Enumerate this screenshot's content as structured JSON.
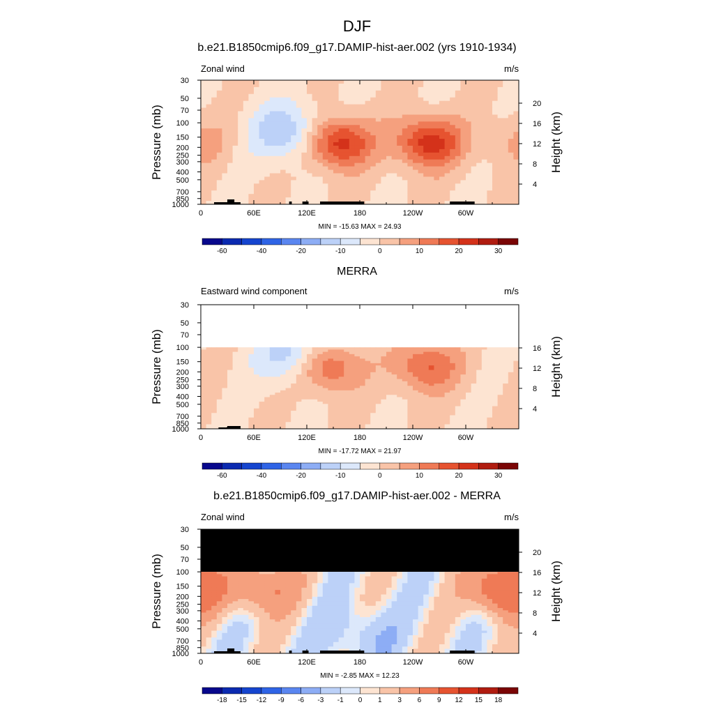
{
  "figure": {
    "title": "DJF"
  },
  "chart_data": [
    {
      "type": "heatmap",
      "title": "b.e21.B1850cmip6.f09_g17.DAMIP-hist-aer.002 (yrs 1910-1934)",
      "left_label": "Zonal wind",
      "units": "m/s",
      "ylabel": "Pressure (mb)",
      "ylabel_right": "Height (km)",
      "x_ticks": [
        "0",
        "60E",
        "120E",
        "180",
        "120W",
        "60W"
      ],
      "y_ticks": [
        "30",
        "50",
        "70",
        "100",
        "150",
        "200",
        "250",
        "300",
        "400",
        "500",
        "700",
        "850",
        "1000"
      ],
      "height_ticks": [
        "4",
        "8",
        "12",
        "16",
        "20"
      ],
      "stats": "MIN = -15.63  MAX =  24.93",
      "min": -15.63,
      "max": 24.93,
      "colorbar_labels": [
        "-60",
        "-40",
        "-20",
        "-10",
        "0",
        "10",
        "20",
        "30"
      ],
      "levels": [
        -60,
        -50,
        -40,
        -30,
        -20,
        -15,
        -10,
        -5,
        0,
        5,
        10,
        15,
        20,
        25,
        30
      ],
      "jets": [
        {
          "lon": 155,
          "p": 175,
          "peak": 24.93
        },
        {
          "lon": 258,
          "p": 175,
          "peak": 23.5
        },
        {
          "lon": 0,
          "p": 170,
          "peak": 6
        }
      ],
      "lows": [
        {
          "lon": 100,
          "p": 130,
          "peak": -15.63
        }
      ],
      "data_top_mb": 30
    },
    {
      "type": "heatmap",
      "title": "MERRA",
      "left_label": "Eastward wind component",
      "units": "m/s",
      "ylabel": "Pressure (mb)",
      "ylabel_right": "Height (km)",
      "x_ticks": [
        "0",
        "60E",
        "120E",
        "180",
        "120W",
        "60W"
      ],
      "y_ticks": [
        "30",
        "50",
        "70",
        "100",
        "150",
        "200",
        "250",
        "300",
        "400",
        "500",
        "700",
        "850",
        "1000"
      ],
      "height_ticks": [
        "4",
        "8",
        "12",
        "16"
      ],
      "stats": "MIN = -17.72  MAX =  21.97",
      "min": -17.72,
      "max": 21.97,
      "colorbar_labels": [
        "-60",
        "-40",
        "-20",
        "-10",
        "0",
        "10",
        "20",
        "30"
      ],
      "levels": [
        -60,
        -50,
        -40,
        -30,
        -20,
        -15,
        -10,
        -5,
        0,
        5,
        10,
        15,
        20,
        25,
        30
      ],
      "jets": [
        {
          "lon": 140,
          "p": 170,
          "peak": 21.97
        },
        {
          "lon": 255,
          "p": 170,
          "peak": 16
        }
      ],
      "lows": [
        {
          "lon": 110,
          "p": 130,
          "peak": -17.72
        }
      ],
      "data_top_mb": 100
    },
    {
      "type": "heatmap",
      "title": "b.e21.B1850cmip6.f09_g17.DAMIP-hist-aer.002 - MERRA",
      "left_label": "Zonal wind",
      "units": "m/s",
      "ylabel": "Pressure (mb)",
      "ylabel_right": "Height (km)",
      "x_ticks": [
        "0",
        "60E",
        "120E",
        "180",
        "120W",
        "60W"
      ],
      "y_ticks": [
        "30",
        "50",
        "70",
        "100",
        "150",
        "200",
        "250",
        "300",
        "400",
        "500",
        "700",
        "850",
        "1000"
      ],
      "height_ticks": [
        "4",
        "8",
        "12",
        "16",
        "20"
      ],
      "stats": "MIN = -2.85  MAX =  12.23",
      "min": -2.85,
      "max": 12.23,
      "colorbar_labels": [
        "-18",
        "-15",
        "-12",
        "-9",
        "-6",
        "-3",
        "-1",
        "0",
        "1",
        "3",
        "6",
        "9",
        "12",
        "15",
        "18"
      ],
      "levels": [
        -21,
        -18,
        -15,
        -12,
        -9,
        -6,
        -3,
        -1,
        0,
        1,
        3,
        6,
        9,
        12,
        15,
        18,
        21
      ],
      "jets": [
        {
          "lon": 345,
          "p": 160,
          "peak": 12.23
        },
        {
          "lon": 70,
          "p": 160,
          "peak": 7
        }
      ],
      "lows": [
        {
          "lon": 180,
          "p": 600,
          "peak": -2.85
        }
      ],
      "data_top_mb": 100,
      "missing_region": "above 100 mb"
    }
  ],
  "colors": {
    "palette": [
      "#08088c",
      "#0b2ab0",
      "#1545cf",
      "#2f64e6",
      "#5a86f0",
      "#8dadf5",
      "#bcd1f8",
      "#dce8fb",
      "#fde4d2",
      "#f9c4a8",
      "#f5a07e",
      "#ef7a56",
      "#e65330",
      "#d4321a",
      "#b01c10",
      "#7a0505"
    ],
    "topography": "#000000",
    "missing": "#000000"
  }
}
